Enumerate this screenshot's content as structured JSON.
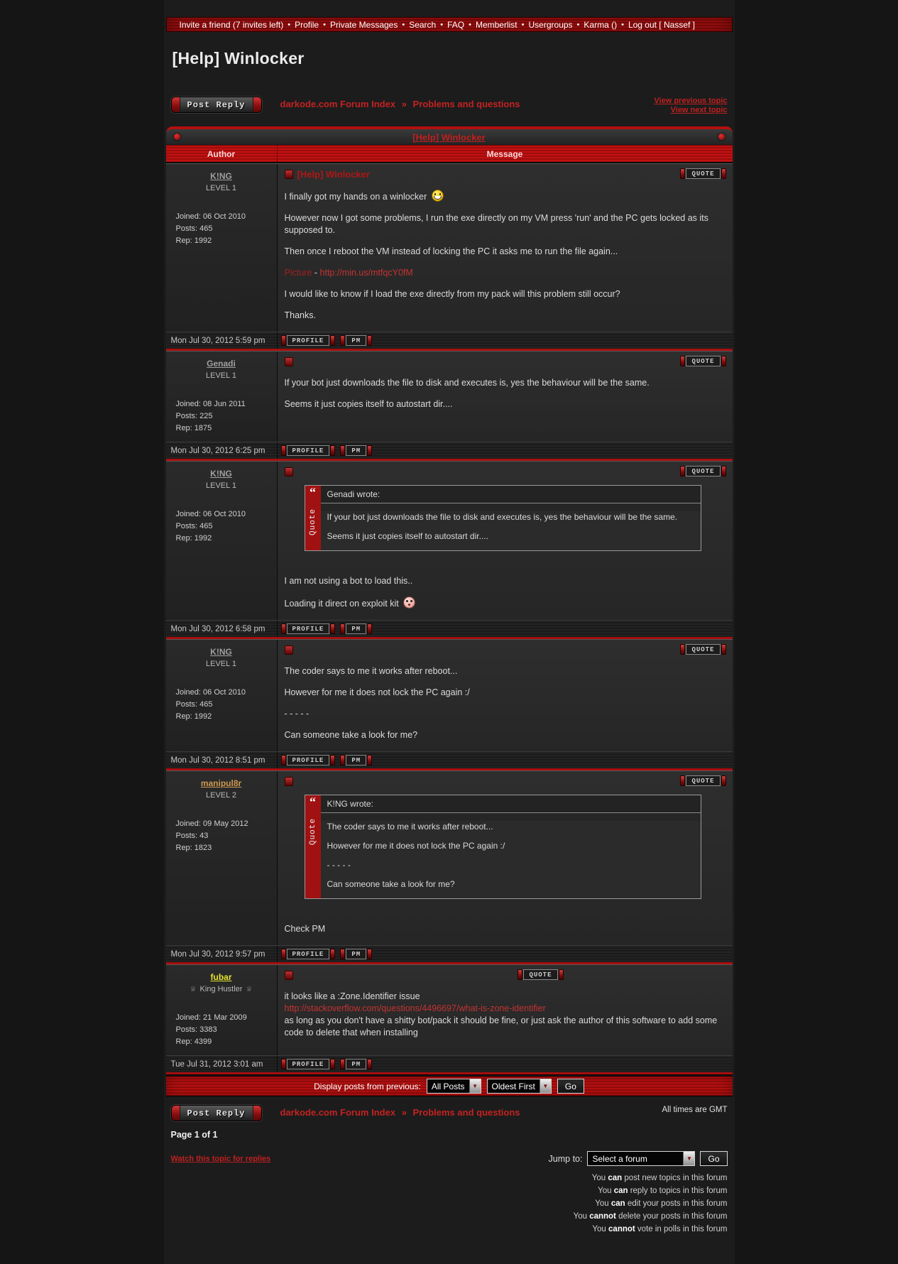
{
  "nav": {
    "separator": "•",
    "items": [
      "Invite a friend (7 invites left)",
      "Profile",
      "Private Messages",
      "Search",
      "FAQ",
      "Memberlist",
      "Usergroups",
      "Karma ()",
      "Log out [ Nassef ]"
    ]
  },
  "page": {
    "title": "[Help] Winlocker",
    "topic_title": "[Help] Winlocker",
    "post_reply_label": "Post Reply",
    "breadcrumb": {
      "root": "darkode.com Forum Index",
      "sep": "»",
      "section": "Problems and questions"
    },
    "view_previous": "View previous topic",
    "view_next": "View next topic",
    "all_times": "All times are GMT",
    "page_indicator": "Page 1 of 1",
    "watch_topic": "Watch this topic for replies"
  },
  "table": {
    "author_header": "Author",
    "message_header": "Message",
    "quote_label": "QUOTE",
    "profile_label": "PROFILE",
    "pm_label": "PM",
    "quote_side_label": "Quote",
    "quote_mark": "“",
    "crown_glyph": "♕"
  },
  "posts": [
    {
      "author": {
        "name": "K!NG",
        "color": "gray",
        "level": "LEVEL 1",
        "joined": "Joined: 06 Oct 2010",
        "posts": "Posts: 465",
        "rep": "Rep: 1992"
      },
      "subject": "[Help] Winlocker",
      "body": [
        {
          "parts": [
            {
              "t": "text",
              "v": "I finally got my hands on a winlocker "
            },
            {
              "t": "smiley",
              "v": "grin"
            }
          ]
        },
        {
          "parts": [
            {
              "t": "text",
              "v": "However now I got some problems, I run the exe directly on my VM press 'run' and the PC gets locked as its supposed to."
            }
          ]
        },
        {
          "parts": [
            {
              "t": "text",
              "v": "Then once I reboot the VM instead of locking the PC it asks me to run the file again..."
            }
          ]
        },
        {
          "parts": [
            {
              "t": "red",
              "v": "Picture"
            },
            {
              "t": "text",
              "v": " - "
            },
            {
              "t": "link",
              "v": "http://min.us/mtfqcY0fM"
            }
          ]
        },
        {
          "parts": [
            {
              "t": "text",
              "v": "I would like to know if I load the exe directly from my pack will this problem still occur?"
            }
          ]
        },
        {
          "parts": [
            {
              "t": "text",
              "v": "Thanks."
            }
          ]
        }
      ],
      "timestamp": "Mon Jul 30, 2012 5:59 pm"
    },
    {
      "author": {
        "name": "Genadi",
        "color": "gray",
        "level": "LEVEL 1",
        "joined": "Joined: 08 Jun 2011",
        "posts": "Posts: 225",
        "rep": "Rep: 1875"
      },
      "body": [
        {
          "parts": [
            {
              "t": "text",
              "v": "If your bot just downloads the file to disk and executes is, yes the behaviour will be the same."
            }
          ]
        },
        {
          "parts": [
            {
              "t": "text",
              "v": "Seems it just copies itself to autostart dir...."
            }
          ]
        }
      ],
      "timestamp": "Mon Jul 30, 2012 6:25 pm"
    },
    {
      "author": {
        "name": "K!NG",
        "color": "gray",
        "level": "LEVEL 1",
        "joined": "Joined: 06 Oct 2010",
        "posts": "Posts: 465",
        "rep": "Rep: 1992"
      },
      "quote": {
        "title": "Genadi wrote:",
        "lines": [
          "If your bot just downloads the file to disk and executes is, yes the behaviour will be the same.",
          "Seems it just copies itself to autostart dir...."
        ]
      },
      "body": [
        {
          "parts": [
            {
              "t": "text",
              "v": "I am not using a bot to load this.."
            }
          ]
        },
        {
          "parts": [
            {
              "t": "text",
              "v": "Loading it direct on exploit kit "
            },
            {
              "t": "smiley",
              "v": "embarrassed"
            }
          ]
        }
      ],
      "timestamp": "Mon Jul 30, 2012 6:58 pm"
    },
    {
      "author": {
        "name": "K!NG",
        "color": "gray",
        "level": "LEVEL 1",
        "joined": "Joined: 06 Oct 2010",
        "posts": "Posts: 465",
        "rep": "Rep: 1992"
      },
      "body": [
        {
          "parts": [
            {
              "t": "text",
              "v": "The coder says to me it works after reboot..."
            }
          ]
        },
        {
          "parts": [
            {
              "t": "text",
              "v": "However for me it does not lock the PC again :/"
            }
          ]
        },
        {
          "parts": [
            {
              "t": "text",
              "v": "- - - - -"
            }
          ]
        },
        {
          "parts": [
            {
              "t": "text",
              "v": "Can someone take a look for me?"
            }
          ]
        }
      ],
      "timestamp": "Mon Jul 30, 2012 8:51 pm"
    },
    {
      "author": {
        "name": "manipul8r",
        "color": "orange",
        "level": "LEVEL 2",
        "joined": "Joined: 09 May 2012",
        "posts": "Posts: 43",
        "rep": "Rep: 1823"
      },
      "quote": {
        "title": "K!NG wrote:",
        "lines": [
          "The coder says to me it works after reboot...",
          "However for me it does not lock the PC again :/",
          "- - - - -",
          "Can someone take a look for me?"
        ]
      },
      "body": [
        {
          "parts": [
            {
              "t": "text",
              "v": "Check PM"
            }
          ]
        }
      ],
      "timestamp": "Mon Jul 30, 2012 9:57 pm"
    },
    {
      "author": {
        "name": "fubar",
        "color": "yellow",
        "level": "King Hustler",
        "crowns": true,
        "joined": "Joined: 21 Mar 2009",
        "posts": "Posts: 3383",
        "rep": "Rep: 4399"
      },
      "body": [
        {
          "parts": [
            {
              "t": "text",
              "v": "it looks like a :Zone.Identifier issue"
            },
            {
              "t": "br"
            },
            {
              "t": "link",
              "v": "http://stackoverflow.com/questions/4496697/what-is-zone-identifier"
            },
            {
              "t": "br"
            },
            {
              "t": "text",
              "v": "as long as you don't have a shitty bot/pack it should be fine, or just ask the author of this software to add some code to delete that when installing"
            }
          ]
        }
      ],
      "timestamp": "Tue Jul 31, 2012 3:01 am"
    }
  ],
  "bottom": {
    "display_label": "Display posts from previous:",
    "display_value": "All Posts",
    "order_value": "Oldest First",
    "go_label": "Go",
    "jump_label": "Jump to:",
    "jump_value": "Select a forum",
    "permissions": [
      {
        "pre": "You ",
        "bold": "can",
        "post": " post new topics in this forum"
      },
      {
        "pre": "You ",
        "bold": "can",
        "post": " reply to topics in this forum"
      },
      {
        "pre": "You ",
        "bold": "can",
        "post": " edit your posts in this forum"
      },
      {
        "pre": "You ",
        "bold": "cannot",
        "post": " delete your posts in this forum"
      },
      {
        "pre": "You ",
        "bold": "cannot",
        "post": " vote in polls in this forum"
      }
    ]
  },
  "colors": {
    "accent_red": "#b00f0f",
    "link_red": "#c42222",
    "username_gray": "#9f9f9f",
    "username_orange": "#cf9a52",
    "username_yellow": "#e6e22e"
  }
}
